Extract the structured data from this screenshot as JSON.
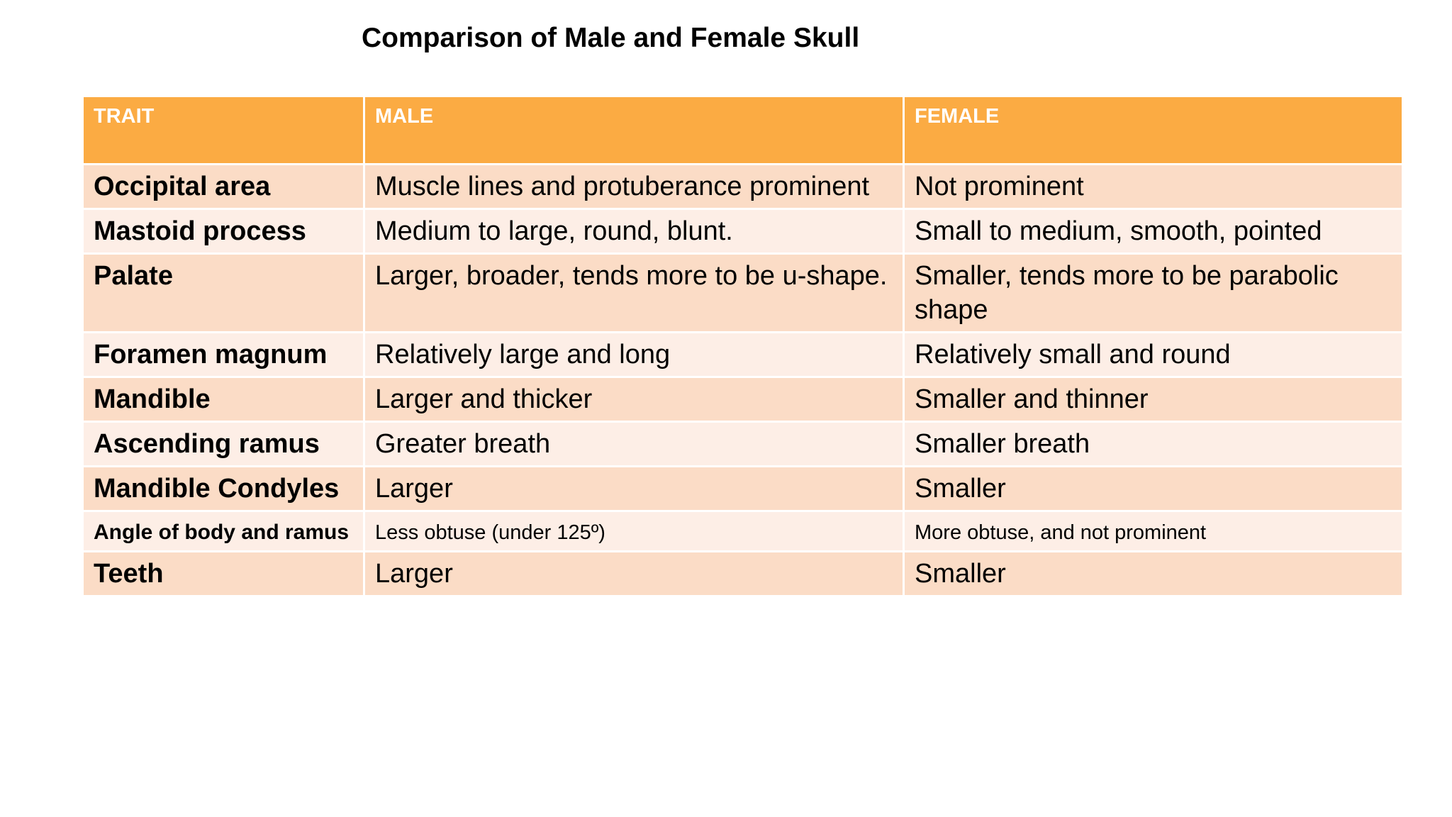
{
  "title": "Comparison of Male and Female Skull",
  "table": {
    "headers": [
      "TRAIT",
      "MALE",
      "FEMALE"
    ],
    "rows": [
      {
        "trait": "Occipital area",
        "male": "Muscle lines and protuberance prominent",
        "female": "Not prominent"
      },
      {
        "trait": "Mastoid process",
        "male": "Medium to large, round, blunt.",
        "female": "Small to medium, smooth, pointed"
      },
      {
        "trait": "Palate",
        "male": "Larger, broader, tends more to be u-shape.",
        "female": "Smaller, tends more to be parabolic shape"
      },
      {
        "trait": "Foramen magnum",
        "male": "Relatively large and long",
        "female": "Relatively small and round"
      },
      {
        "trait": "Mandible",
        "male": "Larger and thicker",
        "female": "Smaller and thinner"
      },
      {
        "trait": "Ascending ramus",
        "male": "Greater breath",
        "female": "Smaller breath"
      },
      {
        "trait": "Mandible Condyles",
        "male": "Larger",
        "female": "Smaller"
      },
      {
        "trait": "Angle of body and ramus",
        "male": "Less obtuse (under 125º)",
        "female": "More obtuse, and not prominent"
      },
      {
        "trait": "Teeth",
        "male": "Larger",
        "female": "Smaller"
      }
    ]
  },
  "colors": {
    "header_bg": "#fbab43",
    "row_dark": "#fbdcc6",
    "row_light": "#fdeee6"
  }
}
